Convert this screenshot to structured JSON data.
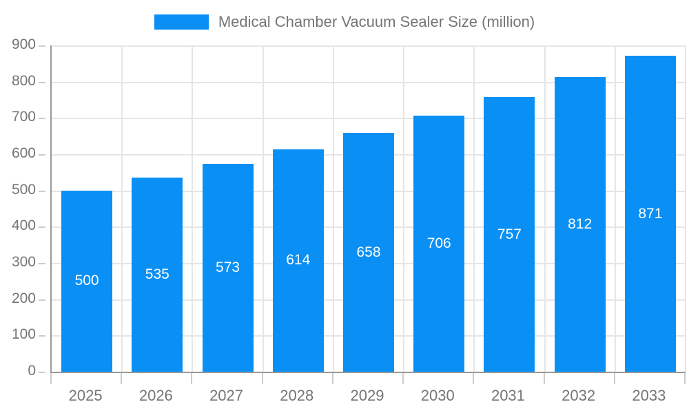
{
  "legend": {
    "label": "Medical Chamber Vacuum Sealer Size (million)"
  },
  "colors": {
    "bar": "#0a90f5",
    "bar_label": "#ffffff",
    "axis_text": "#757575",
    "axis_line": "#999999",
    "gridline": "#e6e6e6",
    "tick": "#cccccc"
  },
  "chart_data": {
    "type": "bar",
    "title": "Medical Chamber Vacuum Sealer Size (million)",
    "categories": [
      "2025",
      "2026",
      "2027",
      "2028",
      "2029",
      "2030",
      "2031",
      "2032",
      "2033"
    ],
    "values": [
      500,
      535,
      573,
      614,
      658,
      706,
      757,
      812,
      871
    ],
    "xlabel": "",
    "ylabel": "",
    "ylim": [
      0,
      900
    ],
    "ytick_step": 100,
    "ytick_labels": [
      "0",
      "100",
      "200",
      "300",
      "400",
      "500",
      "600",
      "700",
      "800",
      "900"
    ],
    "grid": true,
    "legend_position": "top",
    "bar_value_labels_inside": true
  }
}
